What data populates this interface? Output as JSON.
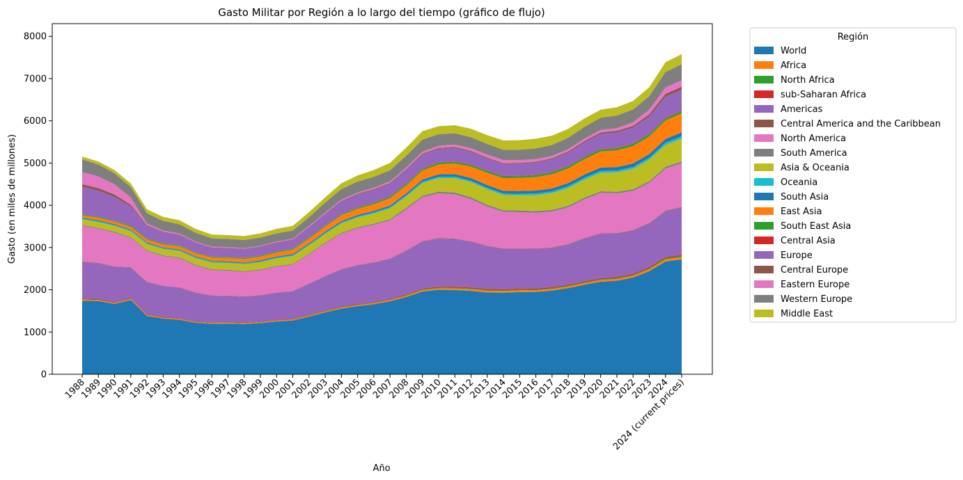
{
  "chart_data": {
    "type": "area",
    "stacked": true,
    "title": "Gasto Militar por Región a lo largo del tiempo (gráfico de flujo)",
    "xlabel": "Año",
    "ylabel": "Gasto (en miles de millones)",
    "ylim": [
      0,
      8300
    ],
    "yticks": [
      0,
      1000,
      2000,
      3000,
      4000,
      5000,
      6000,
      7000,
      8000
    ],
    "grid": false,
    "legend_title": "Región",
    "legend_position": "outside-right",
    "categories": [
      "1988",
      "1989",
      "1990",
      "1991",
      "1992",
      "1993",
      "1994",
      "1995",
      "1996",
      "1997",
      "1998",
      "1999",
      "2000",
      "2001",
      "2002",
      "2003",
      "2004",
      "2005",
      "2006",
      "2007",
      "2008",
      "2009",
      "2010",
      "2011",
      "2012",
      "2013",
      "2014",
      "2015",
      "2016",
      "2017",
      "2018",
      "2019",
      "2020",
      "2021",
      "2022",
      "2023",
      "2024",
      "2024 (current prices)"
    ],
    "series": [
      {
        "name": "World",
        "color": "#1f77b4",
        "values": [
          1740,
          1735,
          1665,
          1760,
          1380,
          1320,
          1290,
          1220,
          1195,
          1200,
          1190,
          1210,
          1250,
          1275,
          1365,
          1465,
          1555,
          1610,
          1660,
          1730,
          1830,
          1960,
          2000,
          1995,
          1975,
          1935,
          1930,
          1945,
          1950,
          1980,
          2040,
          2120,
          2190,
          2215,
          2290,
          2440,
          2670,
          2720
        ]
      },
      {
        "name": "Africa",
        "color": "#ff7f0e",
        "values": [
          26,
          25,
          24,
          23,
          20,
          19,
          19,
          18,
          17,
          17,
          17,
          18,
          19,
          20,
          21,
          22,
          23,
          24,
          25,
          27,
          30,
          34,
          36,
          38,
          40,
          42,
          42,
          41,
          41,
          40,
          40,
          40,
          41,
          42,
          44,
          48,
          52,
          52
        ]
      },
      {
        "name": "North Africa",
        "color": "#2ca02c",
        "values": [
          8,
          8,
          8,
          7,
          6,
          6,
          6,
          6,
          6,
          6,
          6,
          7,
          7,
          8,
          8,
          9,
          9,
          10,
          11,
          12,
          13,
          15,
          16,
          17,
          18,
          19,
          20,
          19,
          19,
          19,
          19,
          19,
          20,
          20,
          20,
          23,
          28,
          28
        ]
      },
      {
        "name": "sub-Saharan Africa",
        "color": "#d62728",
        "values": [
          18,
          17,
          16,
          16,
          14,
          13,
          13,
          12,
          11,
          11,
          11,
          11,
          12,
          12,
          13,
          13,
          14,
          14,
          14,
          15,
          17,
          19,
          20,
          21,
          22,
          23,
          22,
          22,
          22,
          21,
          21,
          21,
          21,
          22,
          24,
          25,
          24,
          24
        ]
      },
      {
        "name": "Americas",
        "color": "#9467bd",
        "values": [
          870,
          840,
          830,
          720,
          760,
          730,
          720,
          670,
          630,
          620,
          610,
          620,
          640,
          650,
          730,
          810,
          880,
          920,
          930,
          950,
          1030,
          1110,
          1140,
          1130,
          1080,
          1010,
          950,
          940,
          930,
          930,
          950,
          1010,
          1050,
          1030,
          1020,
          1030,
          1080,
          1120
        ]
      },
      {
        "name": "Central America and the Caribbean",
        "color": "#8c564b",
        "values": [
          9,
          9,
          9,
          8,
          8,
          8,
          8,
          8,
          8,
          8,
          8,
          8,
          8,
          8,
          8,
          8,
          8,
          8,
          9,
          9,
          10,
          11,
          11,
          11,
          11,
          11,
          11,
          11,
          11,
          12,
          12,
          12,
          12,
          12,
          13,
          14,
          15,
          15
        ]
      },
      {
        "name": "North America",
        "color": "#e377c2",
        "values": [
          840,
          810,
          800,
          690,
          730,
          700,
          690,
          640,
          600,
          590,
          580,
          590,
          610,
          620,
          690,
          770,
          840,
          870,
          890,
          900,
          975,
          1040,
          1060,
          1050,
          1000,
          930,
          870,
          860,
          850,
          850,
          870,
          920,
          960,
          940,
          930,
          950,
          1000,
          1040
        ]
      },
      {
        "name": "South America",
        "color": "#7f7f7f",
        "values": [
          21,
          21,
          21,
          20,
          20,
          20,
          20,
          20,
          20,
          20,
          20,
          20,
          20,
          20,
          21,
          22,
          23,
          25,
          27,
          30,
          34,
          38,
          40,
          41,
          41,
          40,
          38,
          38,
          38,
          38,
          38,
          38,
          38,
          38,
          40,
          40,
          40,
          40
        ]
      },
      {
        "name": "Asia & Oceania",
        "color": "#bcbd22",
        "values": [
          136,
          138,
          140,
          143,
          145,
          148,
          152,
          155,
          158,
          160,
          162,
          168,
          175,
          185,
          195,
          205,
          220,
          230,
          240,
          255,
          270,
          300,
          320,
          340,
          360,
          370,
          360,
          360,
          380,
          400,
          420,
          430,
          440,
          460,
          480,
          510,
          520,
          540
        ]
      },
      {
        "name": "Oceania",
        "color": "#17becf",
        "values": [
          20,
          20,
          20,
          20,
          20,
          20,
          20,
          20,
          20,
          20,
          20,
          21,
          21,
          21,
          22,
          23,
          24,
          25,
          26,
          28,
          30,
          33,
          35,
          36,
          36,
          35,
          35,
          36,
          38,
          40,
          42,
          43,
          44,
          45,
          47,
          49,
          52,
          55
        ]
      },
      {
        "name": "South Asia",
        "color": "#1f77b4",
        "values": [
          20,
          20,
          19,
          18,
          18,
          18,
          18,
          18,
          18,
          19,
          20,
          22,
          24,
          25,
          26,
          28,
          30,
          33,
          35,
          38,
          42,
          48,
          55,
          60,
          62,
          62,
          64,
          66,
          68,
          70,
          72,
          75,
          78,
          80,
          82,
          84,
          90,
          92
        ]
      },
      {
        "name": "East Asia",
        "color": "#ff7f0e",
        "values": [
          55,
          60,
          62,
          65,
          68,
          72,
          75,
          78,
          82,
          85,
          88,
          92,
          98,
          105,
          115,
          125,
          140,
          150,
          160,
          175,
          190,
          215,
          235,
          250,
          270,
          290,
          300,
          310,
          320,
          335,
          350,
          365,
          380,
          395,
          410,
          420,
          435,
          450
        ]
      },
      {
        "name": "South East Asia",
        "color": "#2ca02c",
        "values": [
          20,
          20,
          20,
          20,
          20,
          20,
          20,
          20,
          20,
          20,
          20,
          21,
          22,
          23,
          24,
          25,
          26,
          28,
          30,
          32,
          34,
          36,
          38,
          40,
          42,
          42,
          42,
          42,
          43,
          44,
          45,
          46,
          46,
          46,
          47,
          48,
          49,
          50
        ]
      },
      {
        "name": "Central Asia",
        "color": "#d62728",
        "values": [
          4,
          4,
          4,
          4,
          3,
          3,
          3,
          3,
          3,
          3,
          3,
          3,
          3,
          3,
          4,
          4,
          4,
          5,
          5,
          6,
          7,
          7,
          8,
          8,
          9,
          9,
          9,
          9,
          9,
          9,
          9,
          9,
          9,
          10,
          10,
          10,
          11,
          11
        ]
      },
      {
        "name": "Europe",
        "color": "#9467bd",
        "values": [
          650,
          620,
          560,
          460,
          300,
          260,
          240,
          220,
          200,
          200,
          200,
          200,
          200,
          200,
          230,
          260,
          290,
          300,
          300,
          300,
          320,
          330,
          320,
          320,
          300,
          290,
          280,
          280,
          290,
          300,
          320,
          340,
          360,
          370,
          380,
          410,
          500,
          500
        ]
      },
      {
        "name": "Central Europe",
        "color": "#8c564b",
        "values": [
          60,
          60,
          55,
          40,
          18,
          15,
          14,
          13,
          13,
          13,
          13,
          13,
          14,
          14,
          15,
          16,
          18,
          19,
          20,
          22,
          24,
          25,
          24,
          24,
          23,
          22,
          22,
          22,
          23,
          25,
          28,
          32,
          35,
          38,
          42,
          55,
          70,
          72
        ]
      },
      {
        "name": "Eastern Europe",
        "color": "#e377c2",
        "values": [
          290,
          275,
          240,
          170,
          40,
          30,
          25,
          20,
          18,
          17,
          16,
          17,
          18,
          20,
          22,
          25,
          28,
          30,
          33,
          36,
          40,
          45,
          50,
          55,
          62,
          70,
          75,
          70,
          60,
          55,
          55,
          57,
          60,
          62,
          85,
          110,
          150,
          150
        ]
      },
      {
        "name": "Western Europe",
        "color": "#7f7f7f",
        "values": [
          300,
          285,
          265,
          250,
          240,
          230,
          220,
          210,
          200,
          195,
          195,
          195,
          195,
          195,
          210,
          235,
          255,
          260,
          260,
          265,
          280,
          290,
          275,
          270,
          260,
          250,
          245,
          245,
          255,
          260,
          270,
          280,
          290,
          300,
          305,
          320,
          370,
          380
        ]
      },
      {
        "name": "Middle East",
        "color": "#bcbd22",
        "values": [
          66,
          70,
          75,
          85,
          95,
          95,
          95,
          90,
          90,
          90,
          95,
          100,
          105,
          110,
          118,
          125,
          135,
          145,
          160,
          175,
          190,
          200,
          190,
          190,
          200,
          210,
          220,
          225,
          230,
          220,
          210,
          200,
          190,
          195,
          200,
          210,
          230,
          240
        ]
      }
    ]
  }
}
